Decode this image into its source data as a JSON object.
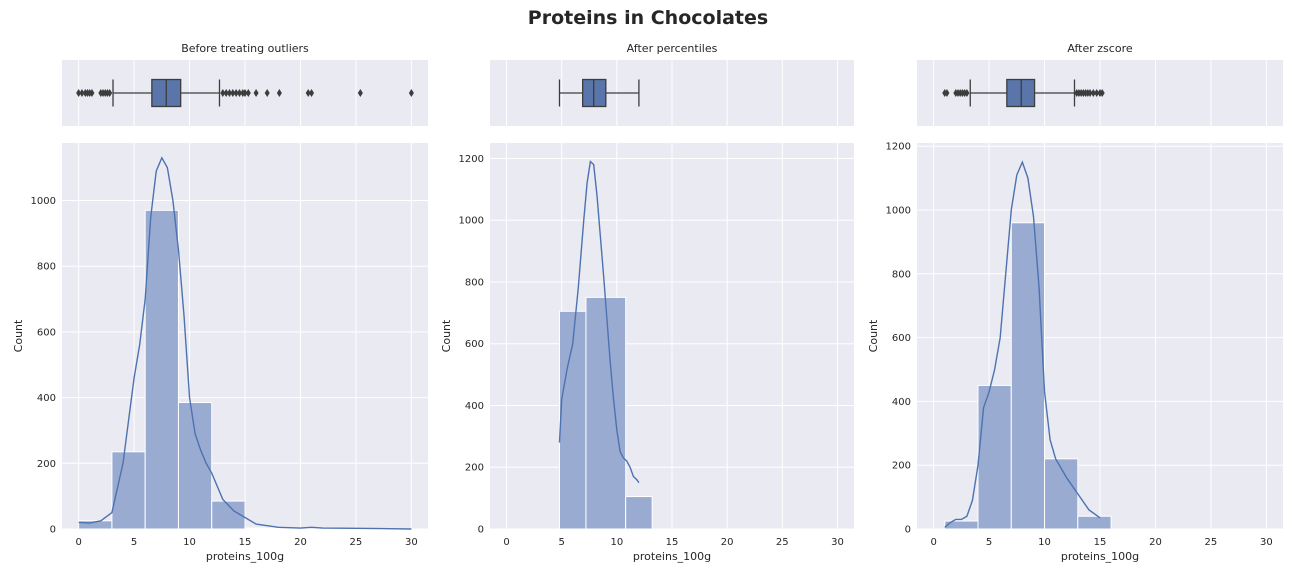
{
  "figure": {
    "title": "Proteins in Chocolates"
  },
  "style": {
    "bar_fill": "#9aabd1",
    "bar_edge": "#ffffff",
    "kde_line": "#4c72b0",
    "box_fill": "#5975a9",
    "box_edge": "#3d3d3d",
    "grid_bg": "#eaeaf2",
    "grid_line": "#ffffff"
  },
  "chart_data": [
    {
      "type": "box",
      "title": "Before treating outliers",
      "xlim": [
        -1.5,
        31.5
      ],
      "whisker_low": 3.1,
      "q1": 6.6,
      "median": 7.9,
      "q3": 9.2,
      "whisker_high": 12.7,
      "outliers": [
        0,
        0.3,
        0.6,
        0.8,
        1.0,
        1.2,
        2.0,
        2.2,
        2.4,
        2.6,
        2.8,
        13.0,
        13.3,
        13.6,
        13.9,
        14.2,
        14.5,
        14.8,
        15.0,
        15.3,
        16.0,
        17.0,
        18.1,
        20.7,
        21.0,
        25.4,
        30.0
      ]
    },
    {
      "type": "bar",
      "xlabel": "proteins_100g",
      "ylabel": "Count",
      "xlim": [
        -1.5,
        31.5
      ],
      "ylim": [
        0,
        1175
      ],
      "xticks": [
        0,
        5,
        10,
        15,
        20,
        25,
        30
      ],
      "yticks": [
        0,
        200,
        400,
        600,
        800,
        1000
      ],
      "bin_edges": [
        0,
        3,
        6,
        9,
        12,
        15,
        18,
        21,
        24,
        27,
        30
      ],
      "counts": [
        25,
        235,
        970,
        385,
        85,
        3,
        2,
        1,
        1,
        1
      ],
      "kde": {
        "x": [
          0,
          1,
          2,
          3,
          4,
          5,
          5.5,
          6,
          6.5,
          7,
          7.5,
          8,
          8.5,
          9,
          9.5,
          10,
          10.5,
          11,
          11.5,
          12,
          13,
          14,
          15,
          16,
          18,
          20,
          21,
          22,
          25,
          28,
          30
        ],
        "y": [
          20,
          18,
          25,
          50,
          200,
          460,
          560,
          700,
          950,
          1090,
          1130,
          1100,
          1000,
          850,
          650,
          400,
          290,
          240,
          200,
          170,
          90,
          55,
          35,
          15,
          5,
          3,
          5,
          3,
          2,
          1,
          0
        ]
      }
    },
    {
      "type": "box",
      "title": "After percentiles",
      "xlim": [
        -1.5,
        31.5
      ],
      "whisker_low": 4.8,
      "q1": 6.9,
      "median": 7.9,
      "q3": 9.0,
      "whisker_high": 12.0,
      "outliers": []
    },
    {
      "type": "bar",
      "xlabel": "proteins_100g",
      "ylabel": "Count",
      "xlim": [
        -1.5,
        31.5
      ],
      "ylim": [
        0,
        1250
      ],
      "xticks": [
        0,
        5,
        10,
        15,
        20,
        25,
        30
      ],
      "yticks": [
        0,
        200,
        400,
        600,
        800,
        1000,
        1200
      ],
      "bin_edges": [
        4.8,
        7.2,
        10.8,
        13.2
      ],
      "counts": [
        705,
        750,
        105
      ],
      "kde": {
        "x": [
          4.8,
          5.0,
          5.5,
          6.0,
          6.5,
          7.0,
          7.3,
          7.6,
          7.9,
          8.2,
          8.5,
          8.8,
          9.1,
          9.4,
          9.7,
          10.0,
          10.3,
          10.6,
          10.9,
          11.2,
          11.5,
          11.8,
          12.0
        ],
        "y": [
          280,
          420,
          520,
          600,
          780,
          1000,
          1120,
          1190,
          1180,
          1080,
          950,
          820,
          680,
          540,
          420,
          320,
          250,
          230,
          220,
          200,
          170,
          160,
          150
        ]
      }
    },
    {
      "type": "box",
      "title": "After zscore",
      "xlim": [
        -1.5,
        31.5
      ],
      "whisker_low": 3.3,
      "q1": 6.6,
      "median": 7.9,
      "q3": 9.1,
      "whisker_high": 12.7,
      "outliers": [
        1.0,
        1.2,
        2.0,
        2.2,
        2.4,
        2.6,
        2.8,
        3.0,
        12.9,
        13.1,
        13.3,
        13.5,
        13.7,
        13.9,
        14.1,
        14.4,
        14.7,
        15.0,
        15.2
      ]
    },
    {
      "type": "bar",
      "xlabel": "proteins_100g",
      "ylabel": "Count",
      "xlim": [
        -1.5,
        31.5
      ],
      "ylim": [
        0,
        1210
      ],
      "xticks": [
        0,
        5,
        10,
        15,
        20,
        25,
        30
      ],
      "yticks": [
        0,
        200,
        400,
        600,
        800,
        1000,
        1200
      ],
      "bin_edges": [
        1,
        4,
        7,
        10,
        13,
        16
      ],
      "counts": [
        25,
        450,
        960,
        220,
        40
      ],
      "kde": {
        "x": [
          1,
          1.5,
          2,
          2.5,
          3,
          3.5,
          4,
          4.5,
          5,
          5.5,
          6,
          6.5,
          7,
          7.5,
          8,
          8.5,
          9,
          9.5,
          10,
          10.5,
          11,
          11.5,
          12,
          13,
          14,
          15
        ],
        "y": [
          5,
          20,
          30,
          30,
          40,
          90,
          200,
          380,
          430,
          500,
          600,
          800,
          1000,
          1110,
          1150,
          1100,
          980,
          760,
          430,
          280,
          220,
          190,
          160,
          110,
          60,
          35
        ]
      }
    }
  ]
}
